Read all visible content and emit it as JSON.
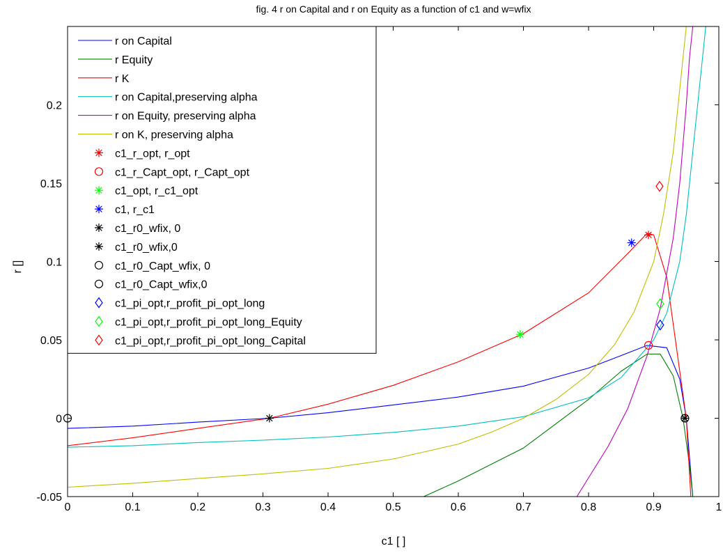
{
  "chart_data": {
    "type": "line",
    "title": "fig. 4 r on Capital and r on Equity as a function of c1 and w=wfix",
    "xlabel": "c1 [ ]",
    "ylabel": "r []",
    "xlim": [
      0,
      1
    ],
    "ylim": [
      -0.05,
      0.25
    ],
    "x_ticks": [
      0,
      0.1,
      0.2,
      0.3,
      0.4,
      0.5,
      0.6,
      0.7,
      0.8,
      0.9,
      1
    ],
    "x_tick_labels": [
      "0",
      "0.1",
      "0.2",
      "0.3",
      "0.4",
      "0.5",
      "0.6",
      "0.7",
      "0.8",
      "0.9",
      "1"
    ],
    "y_ticks": [
      -0.05,
      0,
      0.05,
      0.1,
      0.15,
      0.2
    ],
    "y_tick_labels": [
      "-0.05",
      "0",
      "0.05",
      "0.1",
      "0.15",
      "0.2"
    ],
    "grid": false,
    "legend_position": "top-left",
    "series": [
      {
        "name": "r on Capital",
        "color": "#0000ff",
        "kind": "line",
        "x": [
          0,
          0.1,
          0.2,
          0.3,
          0.31,
          0.4,
          0.5,
          0.6,
          0.7,
          0.8,
          0.85,
          0.89,
          0.92,
          0.94,
          0.95,
          0.96
        ],
        "y": [
          -0.0065,
          -0.005,
          -0.0025,
          -0.0002,
          0,
          0.0035,
          0.0085,
          0.0135,
          0.0205,
          0.032,
          0.04,
          0.0465,
          0.045,
          0.025,
          0,
          -0.05
        ]
      },
      {
        "name": "r Equity",
        "color": "#008000",
        "kind": "line",
        "x": [
          0.547,
          0.6,
          0.7,
          0.8,
          0.85,
          0.89,
          0.91,
          0.93,
          0.945,
          0.955,
          0.96
        ],
        "y": [
          -0.05,
          -0.04,
          -0.019,
          0.012,
          0.03,
          0.041,
          0.041,
          0.027,
          0,
          -0.03,
          -0.05
        ]
      },
      {
        "name": "r K",
        "color": "#ff0000",
        "kind": "line",
        "x": [
          0,
          0.1,
          0.2,
          0.31,
          0.4,
          0.5,
          0.6,
          0.7,
          0.8,
          0.86,
          0.89,
          0.9,
          0.92,
          0.94,
          0.95,
          0.957
        ],
        "y": [
          -0.0175,
          -0.0125,
          -0.0065,
          0,
          0.009,
          0.021,
          0.036,
          0.054,
          0.08,
          0.105,
          0.118,
          0.117,
          0.09,
          0.03,
          0,
          -0.05
        ]
      },
      {
        "name": "r on Capital,preserving alpha",
        "color": "#00bfbf",
        "kind": "line",
        "x": [
          0,
          0.1,
          0.2,
          0.3,
          0.4,
          0.5,
          0.6,
          0.7,
          0.8,
          0.85,
          0.9,
          0.92,
          0.94,
          0.95,
          0.96,
          0.97,
          0.98
        ],
        "y": [
          -0.0185,
          -0.0175,
          -0.0155,
          -0.014,
          -0.012,
          -0.009,
          -0.005,
          0.001,
          0.013,
          0.026,
          0.05,
          0.067,
          0.1,
          0.13,
          0.17,
          0.21,
          0.25
        ]
      },
      {
        "name": "r on Equity, preserving alpha",
        "color": "#bf00bf",
        "kind": "line",
        "x": [
          0.782,
          0.8,
          0.83,
          0.86,
          0.89,
          0.91,
          0.93,
          0.94,
          0.95,
          0.955,
          0.96
        ],
        "y": [
          -0.05,
          -0.038,
          -0.018,
          0.006,
          0.04,
          0.07,
          0.115,
          0.15,
          0.2,
          0.23,
          0.25
        ]
      },
      {
        "name": "r on K, preserving alpha",
        "color": "#bfbf00",
        "kind": "line",
        "x": [
          0,
          0.1,
          0.2,
          0.3,
          0.4,
          0.5,
          0.6,
          0.65,
          0.7,
          0.75,
          0.8,
          0.84,
          0.87,
          0.9,
          0.915,
          0.93,
          0.94,
          0.95
        ],
        "y": [
          -0.044,
          -0.0415,
          -0.0385,
          -0.0355,
          -0.032,
          -0.026,
          -0.0165,
          -0.009,
          0,
          0.012,
          0.028,
          0.047,
          0.068,
          0.1,
          0.13,
          0.17,
          0.21,
          0.25
        ]
      },
      {
        "name": "c1_r_opt, r_opt",
        "color": "#ff0000",
        "kind": "marker",
        "marker": "star",
        "x": [
          0.892
        ],
        "y": [
          0.117
        ]
      },
      {
        "name": "c1_r_Capt_opt, r_Capt_opt",
        "color": "#ff0000",
        "kind": "marker",
        "marker": "circle",
        "x": [
          0.892
        ],
        "y": [
          0.0465
        ]
      },
      {
        "name": "c1_opt, r_c1_opt",
        "color": "#00ff00",
        "kind": "marker",
        "marker": "star",
        "x": [
          0.695
        ],
        "y": [
          0.0535
        ]
      },
      {
        "name": "c1, r_c1",
        "color": "#0000ff",
        "kind": "marker",
        "marker": "star",
        "x": [
          0.866
        ],
        "y": [
          0.112
        ]
      },
      {
        "name": "c1_r0_wfix, 0",
        "color": "#000000",
        "kind": "marker",
        "marker": "star",
        "x": [
          0.31
        ],
        "y": [
          0
        ]
      },
      {
        "name": "c1_r0_wfix,0",
        "color": "#000000",
        "kind": "marker",
        "marker": "star",
        "x": [
          0.948
        ],
        "y": [
          0
        ]
      },
      {
        "name": "c1_r0_Capt_wfix, 0",
        "color": "#000000",
        "kind": "marker",
        "marker": "circle",
        "x": [
          0
        ],
        "y": [
          0
        ]
      },
      {
        "name": "c1_r0_Capt_wfix,0",
        "color": "#000000",
        "kind": "marker",
        "marker": "circle",
        "x": [
          0.948
        ],
        "y": [
          0
        ]
      },
      {
        "name": "c1_pi_opt,r_profit_pi_opt_long",
        "color": "#0000ff",
        "kind": "marker",
        "marker": "diamond",
        "x": [
          0.91
        ],
        "y": [
          0.0595
        ]
      },
      {
        "name": "c1_pi_opt,r_profit_pi_opt_long_Equity",
        "color": "#00ff00",
        "kind": "marker",
        "marker": "diamond",
        "x": [
          0.91
        ],
        "y": [
          0.073
        ]
      },
      {
        "name": "c1_pi_opt,r_profit_pi_opt_long_Capital",
        "color": "#ff0000",
        "kind": "marker",
        "marker": "diamond",
        "x": [
          0.909
        ],
        "y": [
          0.148
        ]
      }
    ]
  }
}
